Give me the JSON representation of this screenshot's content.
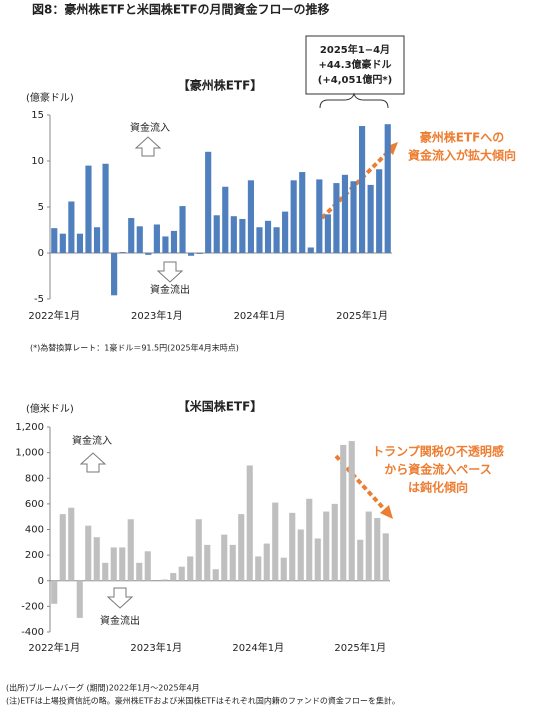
{
  "title": "図8：豪州株ETFと米国株ETFの月間資金フローの推移",
  "chart_data": [
    {
      "type": "bar",
      "title": "【豪州株ETF】",
      "ylabel": "(億豪ドル)",
      "color": "#4f7fbd",
      "categories": [
        "2022年1月",
        null,
        null,
        null,
        null,
        null,
        null,
        null,
        null,
        null,
        null,
        null,
        "2023年1月",
        null,
        null,
        null,
        null,
        null,
        null,
        null,
        null,
        null,
        null,
        null,
        "2024年1月",
        null,
        null,
        null,
        null,
        null,
        null,
        null,
        null,
        null,
        null,
        null,
        "2025年1月",
        null,
        null,
        null
      ],
      "values": [
        2.7,
        2.1,
        5.6,
        2.1,
        9.5,
        2.8,
        9.7,
        -4.6,
        0.1,
        3.8,
        2.9,
        -0.2,
        3.1,
        1.8,
        2.4,
        5.1,
        -0.3,
        -0.1,
        11.0,
        4.1,
        7.2,
        4.0,
        3.7,
        7.9,
        2.8,
        3.5,
        2.8,
        4.5,
        7.9,
        8.8,
        0.6,
        8.0,
        4.2,
        7.6,
        8.5,
        7.8,
        13.8,
        7.4,
        9.1,
        14.0
      ],
      "ylim": [
        -5,
        15
      ],
      "yticks": [
        -5,
        0,
        5,
        10,
        15
      ],
      "inflow": "資金流入",
      "outflow": "資金流出",
      "callout": [
        "2025年1−4月",
        "+44.3億豪ドル",
        "(+4,051億円*)"
      ],
      "trend": [
        "豪州株ETFへの",
        "資金流入が拡大傾向"
      ],
      "note": "(*)為替換算レート：1豪ドル＝91.5円(2025年4月末時点)"
    },
    {
      "type": "bar",
      "title": "【米国株ETF】",
      "ylabel": "(億米ドル)",
      "color": "#bfbfbf",
      "categories": [
        "2022年1月",
        null,
        null,
        null,
        null,
        null,
        null,
        null,
        null,
        null,
        null,
        null,
        "2023年1月",
        null,
        null,
        null,
        null,
        null,
        null,
        null,
        null,
        null,
        null,
        null,
        "2024年1月",
        null,
        null,
        null,
        null,
        null,
        null,
        null,
        null,
        null,
        null,
        null,
        "2025年1月",
        null,
        null,
        null
      ],
      "values": [
        -180,
        520,
        570,
        -290,
        430,
        340,
        140,
        260,
        260,
        480,
        140,
        230,
        0,
        10,
        60,
        110,
        190,
        480,
        280,
        90,
        360,
        280,
        520,
        900,
        190,
        290,
        610,
        180,
        530,
        400,
        640,
        330,
        540,
        600,
        1060,
        1090,
        320,
        540,
        490,
        370
      ],
      "ylim": [
        -400,
        1200
      ],
      "yticks": [
        -400,
        -200,
        0,
        200,
        400,
        600,
        800,
        {
          "value": 1000,
          "label": "1,000"
        },
        {
          "value": 1200,
          "label": "1,200"
        }
      ],
      "inflow": "資金流入",
      "outflow": "資金流出",
      "trend": [
        "トランプ関税の不透明感",
        "から資金流入ペース",
        "は鈍化傾向"
      ]
    }
  ],
  "footnotes": [
    "(出所)ブルームバーグ (期間)2022年1月～2025年4月",
    "(注)ETFは上場投資信託の略。豪州株ETFおよび米国株ETFはそれぞれ国内籍のファンドの資金フローを集計。"
  ]
}
